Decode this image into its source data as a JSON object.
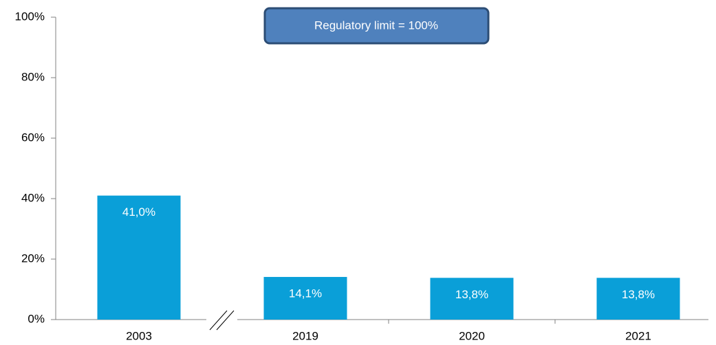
{
  "chart_data": {
    "type": "bar",
    "categories": [
      "2003",
      "2019",
      "2020",
      "2021"
    ],
    "values": [
      41.0,
      14.1,
      13.8,
      13.8
    ],
    "value_labels": [
      "41,0%",
      "14,1%",
      "13,8%",
      "13,8%"
    ],
    "color": "#0a9fd8",
    "ylim": [
      0,
      100
    ],
    "yticks": [
      {
        "value": 0,
        "label": "0%"
      },
      {
        "value": 20,
        "label": "20%"
      },
      {
        "value": 40,
        "label": "40%"
      },
      {
        "value": 60,
        "label": "60%"
      },
      {
        "value": 80,
        "label": "80%"
      },
      {
        "value": 100,
        "label": "100%"
      }
    ],
    "annotation": "Regulatory limit = 100%"
  }
}
